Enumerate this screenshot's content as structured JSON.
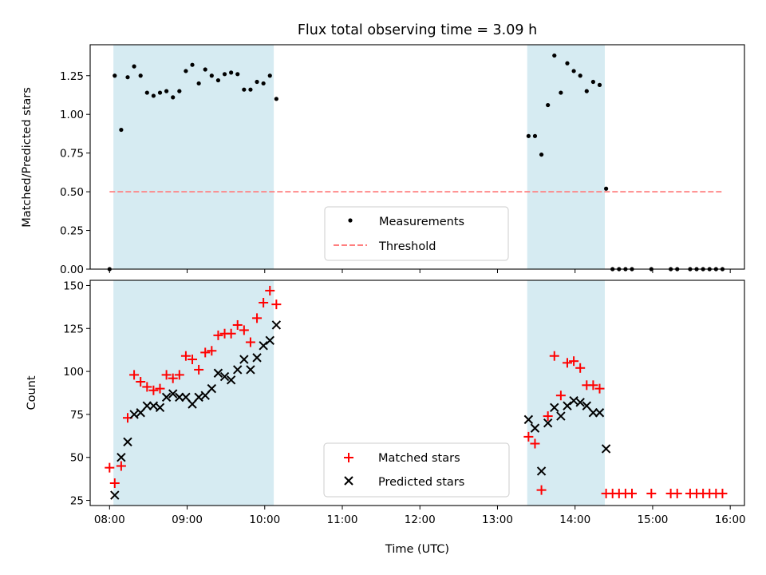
{
  "chart_data": [
    {
      "type": "scatter",
      "title": "Flux total observing time = 3.09 h",
      "xlabel": "",
      "ylabel": "Matched/Predicted stars",
      "xlim": [
        "07:45",
        "16:11"
      ],
      "ylim": [
        0,
        1.45
      ],
      "yticks": [
        "0.00",
        "0.25",
        "0.50",
        "0.75",
        "1.00",
        "1.25"
      ],
      "xticks_labels_shown": false,
      "grid": false,
      "legend_position": "lower-center",
      "shaded_intervals": [
        [
          "08:03",
          "10:07"
        ],
        [
          "13:23",
          "14:23"
        ]
      ],
      "threshold": {
        "name": "Threshold",
        "y": 0.5,
        "x_range": [
          "08:00",
          "15:55"
        ],
        "color": "#ff7f7f"
      },
      "series": [
        {
          "name": "Measurements",
          "color": "#000000",
          "points": [
            [
              "08:00",
              0.0
            ],
            [
              "08:04",
              1.25
            ],
            [
              "08:09",
              0.9
            ],
            [
              "08:14",
              1.24
            ],
            [
              "08:19",
              1.31
            ],
            [
              "08:24",
              1.25
            ],
            [
              "08:29",
              1.14
            ],
            [
              "08:34",
              1.12
            ],
            [
              "08:39",
              1.14
            ],
            [
              "08:44",
              1.15
            ],
            [
              "08:49",
              1.11
            ],
            [
              "08:54",
              1.15
            ],
            [
              "08:59",
              1.28
            ],
            [
              "09:04",
              1.32
            ],
            [
              "09:09",
              1.2
            ],
            [
              "09:14",
              1.29
            ],
            [
              "09:19",
              1.25
            ],
            [
              "09:24",
              1.22
            ],
            [
              "09:29",
              1.26
            ],
            [
              "09:34",
              1.27
            ],
            [
              "09:39",
              1.26
            ],
            [
              "09:44",
              1.16
            ],
            [
              "09:49",
              1.16
            ],
            [
              "09:54",
              1.21
            ],
            [
              "09:59",
              1.2
            ],
            [
              "10:04",
              1.25
            ],
            [
              "10:09",
              1.1
            ],
            [
              "13:24",
              0.86
            ],
            [
              "13:29",
              0.86
            ],
            [
              "13:34",
              0.74
            ],
            [
              "13:39",
              1.06
            ],
            [
              "13:44",
              1.38
            ],
            [
              "13:49",
              1.14
            ],
            [
              "13:54",
              1.33
            ],
            [
              "13:59",
              1.28
            ],
            [
              "14:04",
              1.25
            ],
            [
              "14:09",
              1.15
            ],
            [
              "14:14",
              1.21
            ],
            [
              "14:19",
              1.19
            ],
            [
              "14:24",
              0.52
            ],
            [
              "14:29",
              0.0
            ],
            [
              "14:34",
              0.0
            ],
            [
              "14:39",
              0.0
            ],
            [
              "14:44",
              0.0
            ],
            [
              "14:59",
              0.0
            ],
            [
              "15:14",
              0.0
            ],
            [
              "15:19",
              0.0
            ],
            [
              "15:29",
              0.0
            ],
            [
              "15:34",
              0.0
            ],
            [
              "15:39",
              0.0
            ],
            [
              "15:44",
              0.0
            ],
            [
              "15:49",
              0.0
            ],
            [
              "15:54",
              0.0
            ]
          ]
        }
      ]
    },
    {
      "type": "scatter",
      "title": "",
      "xlabel": "Time (UTC)",
      "ylabel": "Count",
      "xlim": [
        "07:45",
        "16:11"
      ],
      "ylim": [
        22,
        153
      ],
      "yticks": [
        "25",
        "50",
        "75",
        "100",
        "125",
        "150"
      ],
      "xticks": [
        "08:00",
        "09:00",
        "10:00",
        "11:00",
        "12:00",
        "13:00",
        "14:00",
        "15:00",
        "16:00"
      ],
      "grid": false,
      "legend_position": "lower-center",
      "shaded_intervals": [
        [
          "08:03",
          "10:07"
        ],
        [
          "13:23",
          "14:23"
        ]
      ],
      "series": [
        {
          "name": "Matched stars",
          "marker": "+",
          "color": "#ff0000",
          "points": [
            [
              "08:00",
              44
            ],
            [
              "08:04",
              35
            ],
            [
              "08:09",
              45
            ],
            [
              "08:14",
              73
            ],
            [
              "08:19",
              98
            ],
            [
              "08:24",
              94
            ],
            [
              "08:29",
              91
            ],
            [
              "08:34",
              89
            ],
            [
              "08:39",
              90
            ],
            [
              "08:44",
              98
            ],
            [
              "08:49",
              96
            ],
            [
              "08:54",
              98
            ],
            [
              "08:59",
              109
            ],
            [
              "09:04",
              107
            ],
            [
              "09:09",
              101
            ],
            [
              "09:14",
              111
            ],
            [
              "09:19",
              112
            ],
            [
              "09:24",
              121
            ],
            [
              "09:29",
              122
            ],
            [
              "09:34",
              122
            ],
            [
              "09:39",
              127
            ],
            [
              "09:44",
              124
            ],
            [
              "09:49",
              117
            ],
            [
              "09:54",
              131
            ],
            [
              "09:59",
              140
            ],
            [
              "10:04",
              147
            ],
            [
              "10:09",
              139
            ],
            [
              "13:24",
              62
            ],
            [
              "13:29",
              58
            ],
            [
              "13:34",
              31
            ],
            [
              "13:39",
              74
            ],
            [
              "13:44",
              109
            ],
            [
              "13:49",
              86
            ],
            [
              "13:54",
              105
            ],
            [
              "13:59",
              106
            ],
            [
              "14:04",
              102
            ],
            [
              "14:09",
              92
            ],
            [
              "14:14",
              92
            ],
            [
              "14:19",
              90
            ],
            [
              "14:24",
              29
            ],
            [
              "14:29",
              29
            ],
            [
              "14:34",
              29
            ],
            [
              "14:39",
              29
            ],
            [
              "14:44",
              29
            ],
            [
              "14:59",
              29
            ],
            [
              "15:14",
              29
            ],
            [
              "15:19",
              29
            ],
            [
              "15:29",
              29
            ],
            [
              "15:34",
              29
            ],
            [
              "15:39",
              29
            ],
            [
              "15:44",
              29
            ],
            [
              "15:49",
              29
            ],
            [
              "15:54",
              29
            ]
          ]
        },
        {
          "name": "Predicted stars",
          "marker": "x",
          "color": "#000000",
          "points": [
            [
              "08:04",
              28
            ],
            [
              "08:09",
              50
            ],
            [
              "08:14",
              59
            ],
            [
              "08:19",
              75
            ],
            [
              "08:24",
              76
            ],
            [
              "08:29",
              80
            ],
            [
              "08:34",
              80
            ],
            [
              "08:39",
              79
            ],
            [
              "08:44",
              85
            ],
            [
              "08:49",
              87
            ],
            [
              "08:54",
              85
            ],
            [
              "08:59",
              85
            ],
            [
              "09:04",
              81
            ],
            [
              "09:09",
              85
            ],
            [
              "09:14",
              86
            ],
            [
              "09:19",
              90
            ],
            [
              "09:24",
              99
            ],
            [
              "09:29",
              97
            ],
            [
              "09:34",
              95
            ],
            [
              "09:39",
              101
            ],
            [
              "09:44",
              107
            ],
            [
              "09:49",
              101
            ],
            [
              "09:54",
              108
            ],
            [
              "09:59",
              115
            ],
            [
              "10:04",
              118
            ],
            [
              "10:09",
              127
            ],
            [
              "13:24",
              72
            ],
            [
              "13:29",
              67
            ],
            [
              "13:34",
              42
            ],
            [
              "13:39",
              70
            ],
            [
              "13:44",
              79
            ],
            [
              "13:49",
              74
            ],
            [
              "13:54",
              80
            ],
            [
              "13:59",
              83
            ],
            [
              "14:04",
              82
            ],
            [
              "14:09",
              80
            ],
            [
              "14:14",
              76
            ],
            [
              "14:19",
              76
            ],
            [
              "14:24",
              55
            ]
          ]
        }
      ]
    }
  ]
}
